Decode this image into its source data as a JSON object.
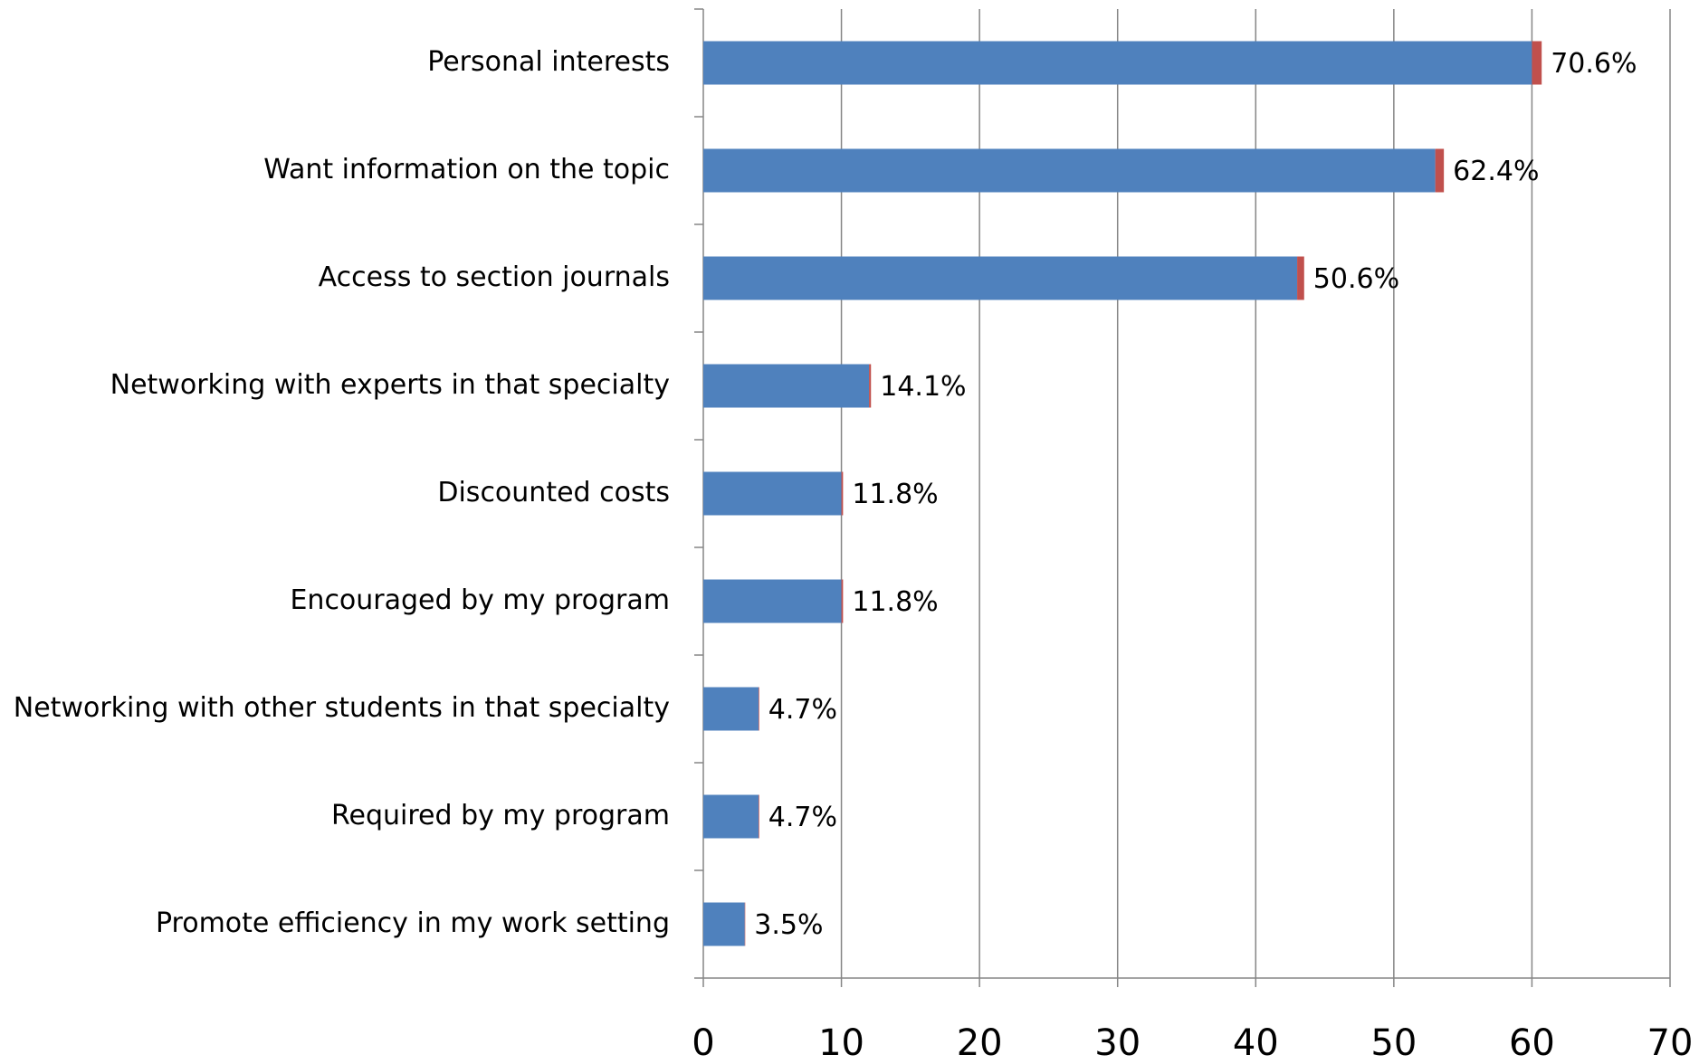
{
  "chart_data": {
    "type": "stacked-barh",
    "categories": [
      "Personal interests",
      "Want information on the topic",
      "Access to section journals",
      "Networking with experts in that specialty",
      "Discounted costs",
      "Encouraged by my program",
      "Networking with other students in that specialty",
      "Required by my program",
      "Promote efficiency in my work setting"
    ],
    "series": [
      {
        "color": "#4f81bd",
        "values": [
          60,
          53,
          43,
          12,
          10,
          10,
          4,
          4,
          3
        ]
      },
      {
        "color": "#c0504d",
        "values": [
          0.706,
          0.624,
          0.506,
          0.141,
          0.118,
          0.118,
          0.047,
          0.047,
          0.035
        ],
        "value_labels": [
          "70.6%",
          "62.4%",
          "50.6%",
          "14.1%",
          "11.8%",
          "11.8%",
          "4.7%",
          "4.7%",
          "3.5%"
        ]
      }
    ],
    "xlim": [
      0,
      70
    ],
    "xticks": [
      0,
      10,
      20,
      30,
      40,
      50,
      60,
      70
    ],
    "grid": true
  }
}
